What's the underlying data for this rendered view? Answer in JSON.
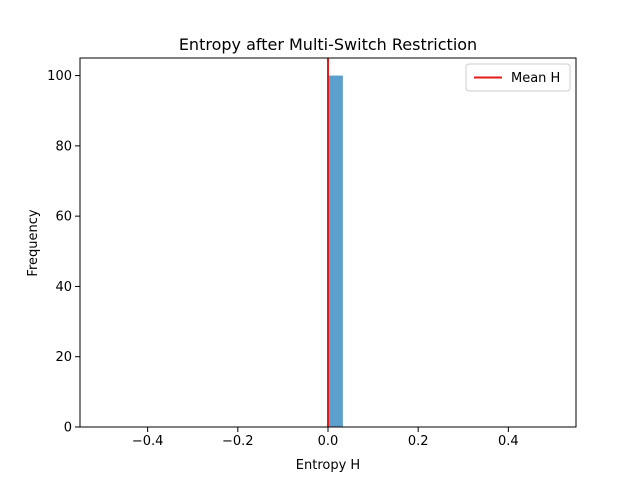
{
  "chart_data": {
    "type": "bar",
    "title": "Entropy after Multi-Switch Restriction",
    "xlabel": "Entropy H",
    "ylabel": "Frequency",
    "xlim": [
      -0.55,
      0.55
    ],
    "ylim": [
      0,
      105
    ],
    "xticks": [
      -0.4,
      -0.2,
      0.0,
      0.2,
      0.4
    ],
    "xtick_labels": [
      "−0.4",
      "−0.2",
      "0.0",
      "0.2",
      "0.4"
    ],
    "yticks": [
      0,
      20,
      40,
      60,
      80,
      100
    ],
    "ytick_labels": [
      "0",
      "20",
      "40",
      "60",
      "80",
      "100"
    ],
    "bins": [
      {
        "x0": 0.0,
        "x1": 0.033,
        "count": 100
      }
    ],
    "mean_line": {
      "x": 0.0,
      "label": "Mean H",
      "color": "#e31a1c"
    },
    "bar_color": "#5b9fcc",
    "legend": {
      "position": "top-right",
      "entries": [
        "Mean H"
      ]
    },
    "grid": false
  }
}
